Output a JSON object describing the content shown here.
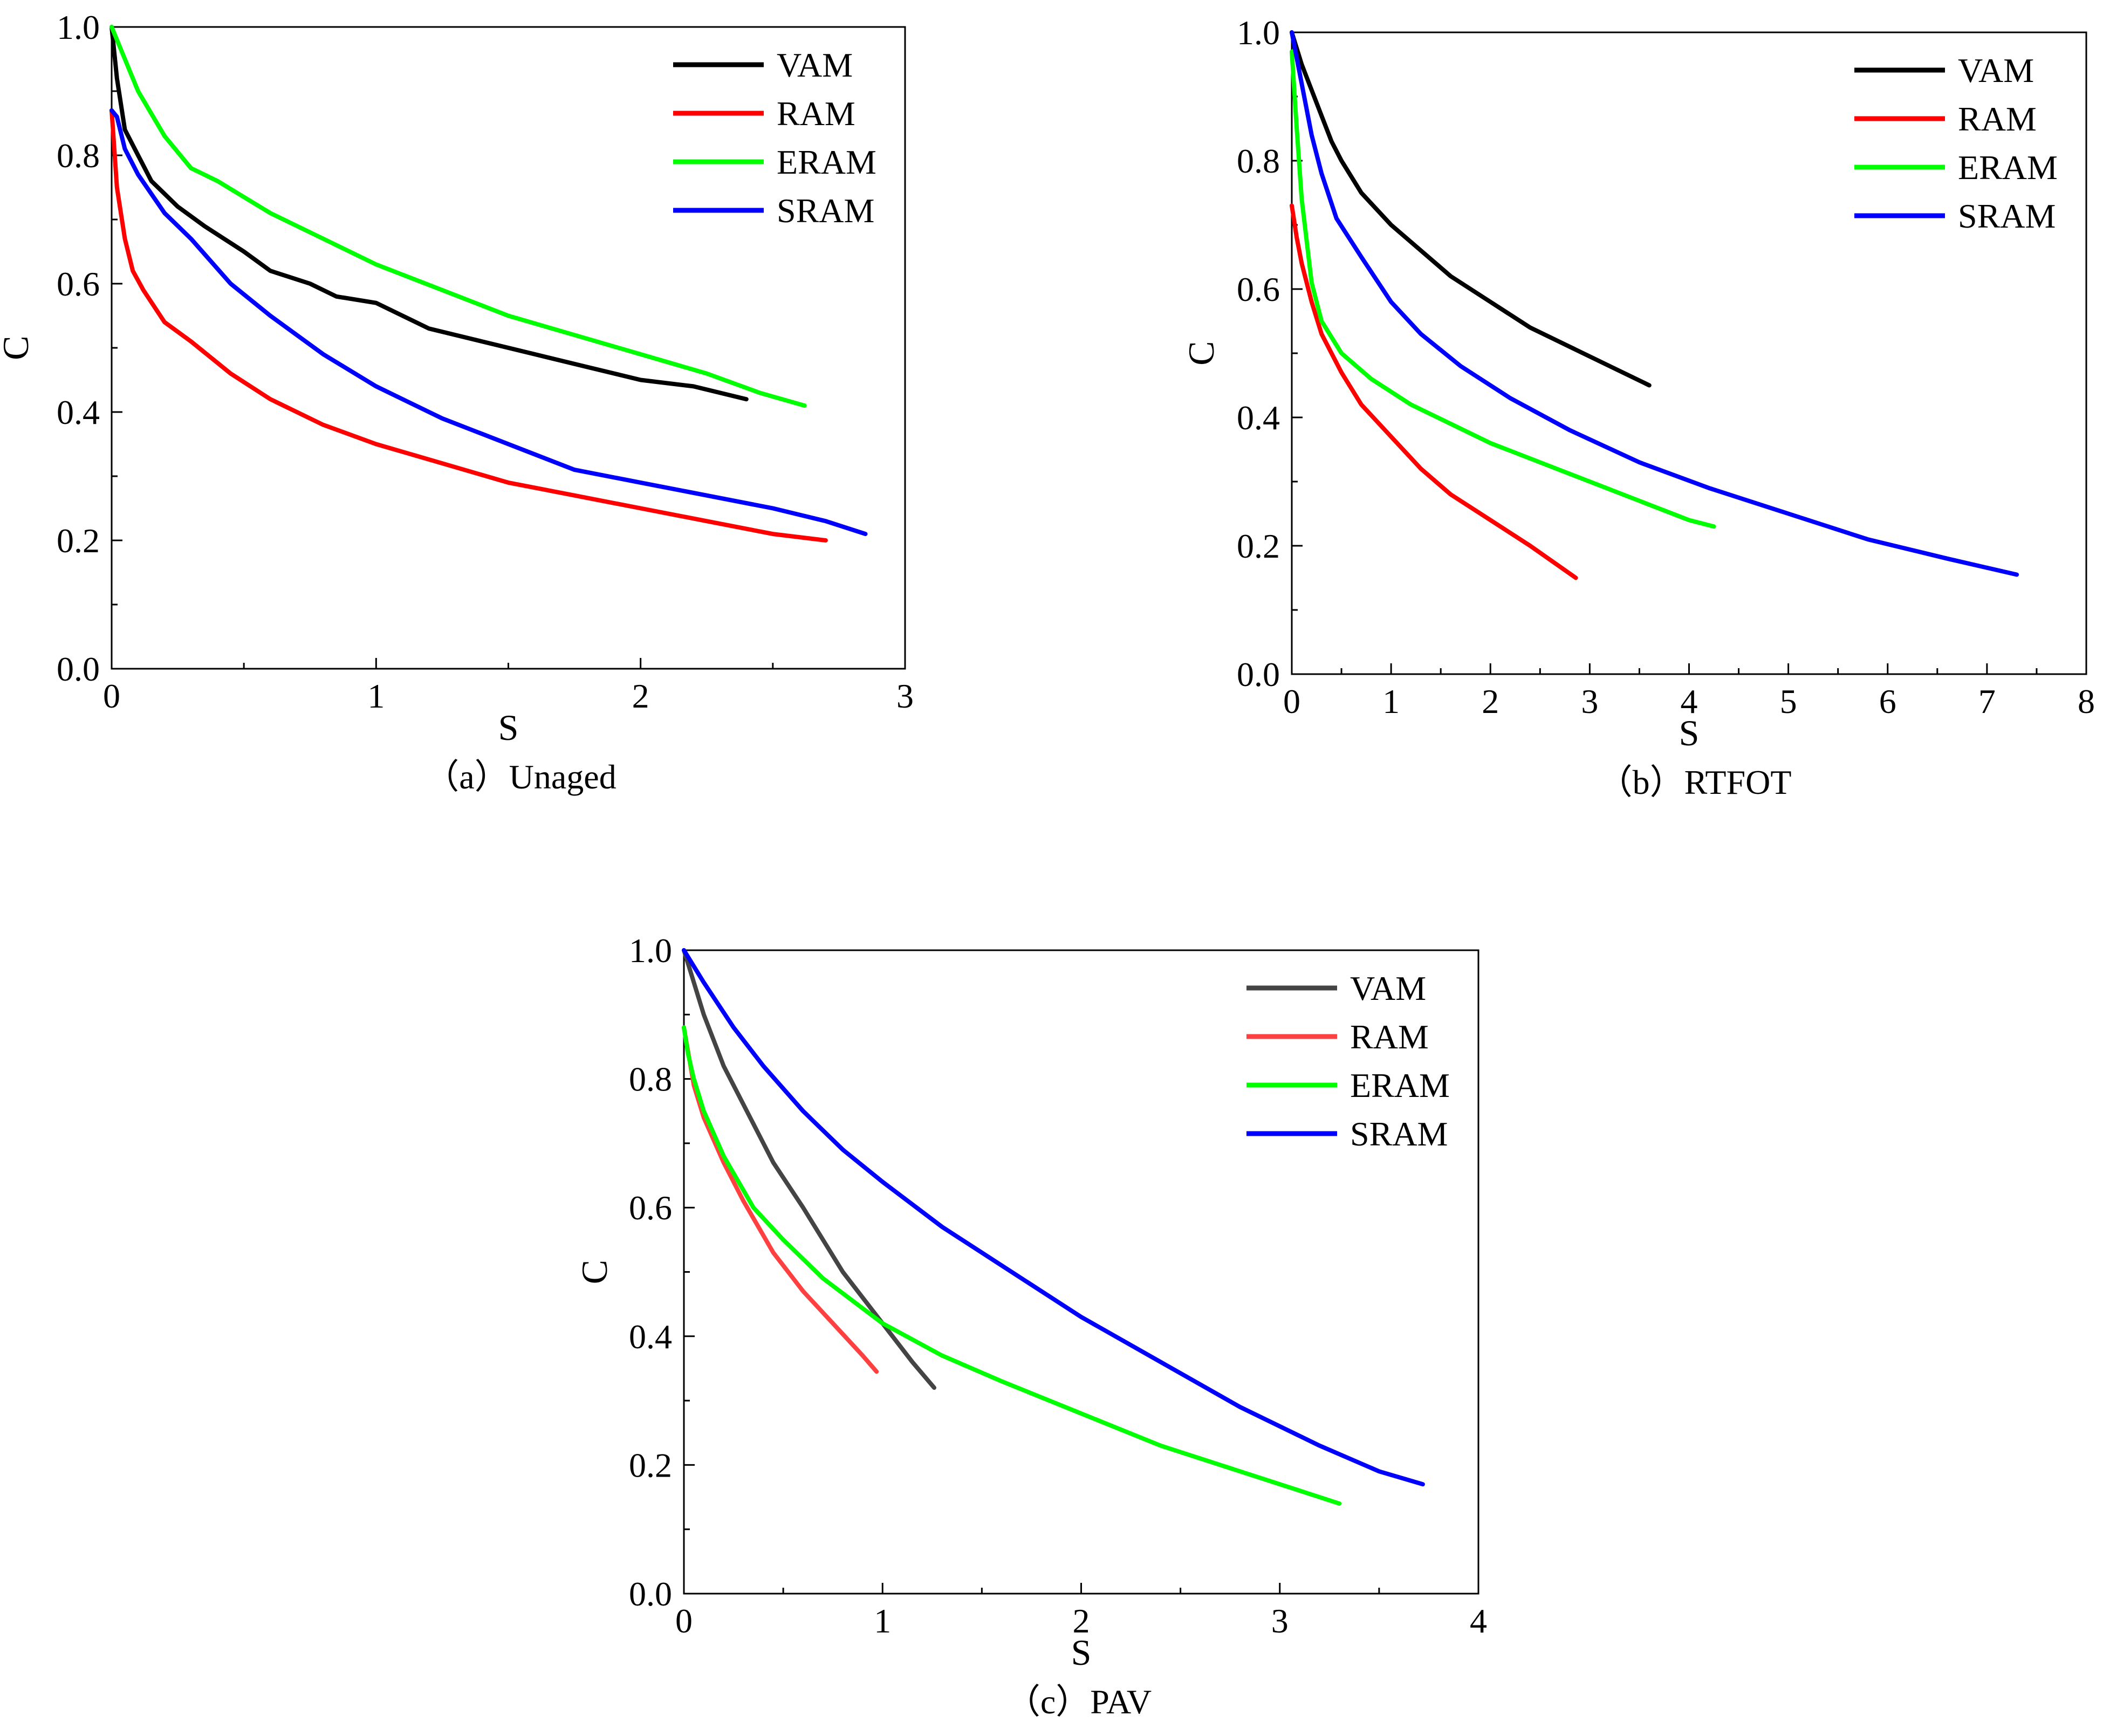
{
  "chart_data": [
    {
      "id": "a",
      "type": "line",
      "caption": "（a）Unaged",
      "xlabel": "S",
      "ylabel": "C",
      "xlim": [
        0,
        3
      ],
      "ylim": [
        0,
        1.0
      ],
      "xticks": [
        0,
        1,
        2,
        3
      ],
      "xtick_labels": [
        "0",
        "1",
        "2",
        "3"
      ],
      "yticks": [
        0,
        0.2,
        0.4,
        0.6,
        0.8,
        1.0
      ],
      "ytick_labels": [
        "0.0",
        "0.2",
        "0.4",
        "0.6",
        "0.8",
        "1.0"
      ],
      "grid": false,
      "legend": "top-right",
      "series": [
        {
          "name": "VAM",
          "color": "#000000",
          "x": [
            0,
            0.02,
            0.05,
            0.1,
            0.15,
            0.2,
            0.25,
            0.35,
            0.5,
            0.6,
            0.75,
            0.85,
            1.0,
            1.2,
            1.4,
            1.6,
            1.8,
            2.0,
            2.2,
            2.4
          ],
          "y": [
            1.0,
            0.92,
            0.84,
            0.8,
            0.76,
            0.74,
            0.72,
            0.69,
            0.65,
            0.62,
            0.6,
            0.58,
            0.57,
            0.53,
            0.51,
            0.49,
            0.47,
            0.45,
            0.44,
            0.42
          ]
        },
        {
          "name": "RAM",
          "color": "#ff0000",
          "x": [
            0,
            0.02,
            0.05,
            0.08,
            0.12,
            0.2,
            0.3,
            0.45,
            0.6,
            0.8,
            1.0,
            1.25,
            1.5,
            1.75,
            2.0,
            2.25,
            2.5,
            2.7
          ],
          "y": [
            0.87,
            0.75,
            0.67,
            0.62,
            0.59,
            0.54,
            0.51,
            0.46,
            0.42,
            0.38,
            0.35,
            0.32,
            0.29,
            0.27,
            0.25,
            0.23,
            0.21,
            0.2
          ]
        },
        {
          "name": "ERAM",
          "color": "#00ff00",
          "x": [
            0,
            0.1,
            0.2,
            0.3,
            0.4,
            0.6,
            0.8,
            1.0,
            1.25,
            1.5,
            1.75,
            2.0,
            2.25,
            2.45,
            2.62
          ],
          "y": [
            1.0,
            0.9,
            0.83,
            0.78,
            0.76,
            0.71,
            0.67,
            0.63,
            0.59,
            0.55,
            0.52,
            0.49,
            0.46,
            0.43,
            0.41
          ]
        },
        {
          "name": "SRAM",
          "color": "#0000ff",
          "x": [
            0,
            0.02,
            0.05,
            0.1,
            0.2,
            0.3,
            0.45,
            0.6,
            0.8,
            1.0,
            1.25,
            1.5,
            1.75,
            2.0,
            2.25,
            2.5,
            2.7,
            2.85
          ],
          "y": [
            0.87,
            0.86,
            0.81,
            0.77,
            0.71,
            0.67,
            0.6,
            0.55,
            0.49,
            0.44,
            0.39,
            0.35,
            0.31,
            0.29,
            0.27,
            0.25,
            0.23,
            0.21
          ]
        }
      ]
    },
    {
      "id": "b",
      "type": "line",
      "caption": "（b）RTFOT",
      "xlabel": "S",
      "ylabel": "C",
      "xlim": [
        0,
        8
      ],
      "ylim": [
        0,
        1.0
      ],
      "xticks": [
        0,
        1,
        2,
        3,
        4,
        5,
        6,
        7,
        8
      ],
      "xtick_labels": [
        "0",
        "1",
        "2",
        "3",
        "4",
        "5",
        "6",
        "7",
        "8"
      ],
      "yticks": [
        0,
        0.2,
        0.4,
        0.6,
        0.8,
        1.0
      ],
      "ytick_labels": [
        "0.0",
        "0.2",
        "0.4",
        "0.6",
        "0.8",
        "1.0"
      ],
      "grid": false,
      "legend": "top-right",
      "series": [
        {
          "name": "VAM",
          "color": "#000000",
          "x": [
            0,
            0.1,
            0.2,
            0.3,
            0.4,
            0.5,
            0.7,
            1.0,
            1.3,
            1.6,
            2.0,
            2.4,
            2.8,
            3.2,
            3.6
          ],
          "y": [
            1.0,
            0.95,
            0.91,
            0.87,
            0.83,
            0.8,
            0.75,
            0.7,
            0.66,
            0.62,
            0.58,
            0.54,
            0.51,
            0.48,
            0.45
          ]
        },
        {
          "name": "RAM",
          "color": "#ff0000",
          "x": [
            0,
            0.05,
            0.1,
            0.2,
            0.3,
            0.5,
            0.7,
            1.0,
            1.3,
            1.6,
            2.0,
            2.4,
            2.86
          ],
          "y": [
            0.73,
            0.68,
            0.64,
            0.58,
            0.53,
            0.47,
            0.42,
            0.37,
            0.32,
            0.28,
            0.24,
            0.2,
            0.15
          ]
        },
        {
          "name": "ERAM",
          "color": "#00ff00",
          "x": [
            0,
            0.05,
            0.1,
            0.2,
            0.3,
            0.5,
            0.8,
            1.2,
            1.6,
            2.0,
            2.5,
            3.0,
            3.5,
            4.0,
            4.25
          ],
          "y": [
            0.97,
            0.85,
            0.74,
            0.61,
            0.55,
            0.5,
            0.46,
            0.42,
            0.39,
            0.36,
            0.33,
            0.3,
            0.27,
            0.24,
            0.23
          ]
        },
        {
          "name": "SRAM",
          "color": "#0000ff",
          "x": [
            0,
            0.1,
            0.2,
            0.3,
            0.45,
            0.7,
            1.0,
            1.3,
            1.7,
            2.2,
            2.8,
            3.5,
            4.2,
            5.0,
            5.8,
            6.6,
            7.3
          ],
          "y": [
            1.0,
            0.92,
            0.84,
            0.78,
            0.71,
            0.65,
            0.58,
            0.53,
            0.48,
            0.43,
            0.38,
            0.33,
            0.29,
            0.25,
            0.21,
            0.18,
            0.155
          ]
        }
      ]
    },
    {
      "id": "c",
      "type": "line",
      "caption": "（c）PAV",
      "xlabel": "S",
      "ylabel": "C",
      "xlim": [
        0,
        4
      ],
      "ylim": [
        0,
        1.0
      ],
      "xticks": [
        0,
        1,
        2,
        3,
        4
      ],
      "xtick_labels": [
        "0",
        "1",
        "2",
        "3",
        "4"
      ],
      "yticks": [
        0,
        0.2,
        0.4,
        0.6,
        0.8,
        1.0
      ],
      "ytick_labels": [
        "0.0",
        "0.2",
        "0.4",
        "0.6",
        "0.8",
        "1.0"
      ],
      "grid": false,
      "legend": "top-right",
      "series": [
        {
          "name": "VAM",
          "color": "#444444",
          "x": [
            0,
            0.1,
            0.2,
            0.3,
            0.45,
            0.6,
            0.8,
            1.0,
            1.15,
            1.26
          ],
          "y": [
            1.0,
            0.9,
            0.82,
            0.76,
            0.67,
            0.6,
            0.5,
            0.42,
            0.36,
            0.32
          ]
        },
        {
          "name": "RAM",
          "color": "#ff4040",
          "x": [
            0,
            0.05,
            0.1,
            0.2,
            0.3,
            0.45,
            0.6,
            0.75,
            0.9,
            0.97
          ],
          "y": [
            0.88,
            0.79,
            0.74,
            0.67,
            0.61,
            0.53,
            0.47,
            0.42,
            0.37,
            0.345
          ]
        },
        {
          "name": "ERAM",
          "color": "#00ff00",
          "x": [
            0,
            0.02,
            0.05,
            0.1,
            0.2,
            0.35,
            0.5,
            0.7,
            1.0,
            1.3,
            1.6,
            2.0,
            2.4,
            2.8,
            3.1,
            3.3
          ],
          "y": [
            0.88,
            0.84,
            0.8,
            0.75,
            0.68,
            0.6,
            0.55,
            0.49,
            0.42,
            0.37,
            0.33,
            0.28,
            0.23,
            0.19,
            0.16,
            0.14
          ]
        },
        {
          "name": "SRAM",
          "color": "#0000ff",
          "x": [
            0,
            0.1,
            0.25,
            0.4,
            0.6,
            0.8,
            1.0,
            1.3,
            1.6,
            2.0,
            2.4,
            2.8,
            3.2,
            3.5,
            3.72
          ],
          "y": [
            1.0,
            0.95,
            0.88,
            0.82,
            0.75,
            0.69,
            0.64,
            0.57,
            0.51,
            0.43,
            0.36,
            0.29,
            0.23,
            0.19,
            0.17
          ]
        }
      ]
    }
  ]
}
